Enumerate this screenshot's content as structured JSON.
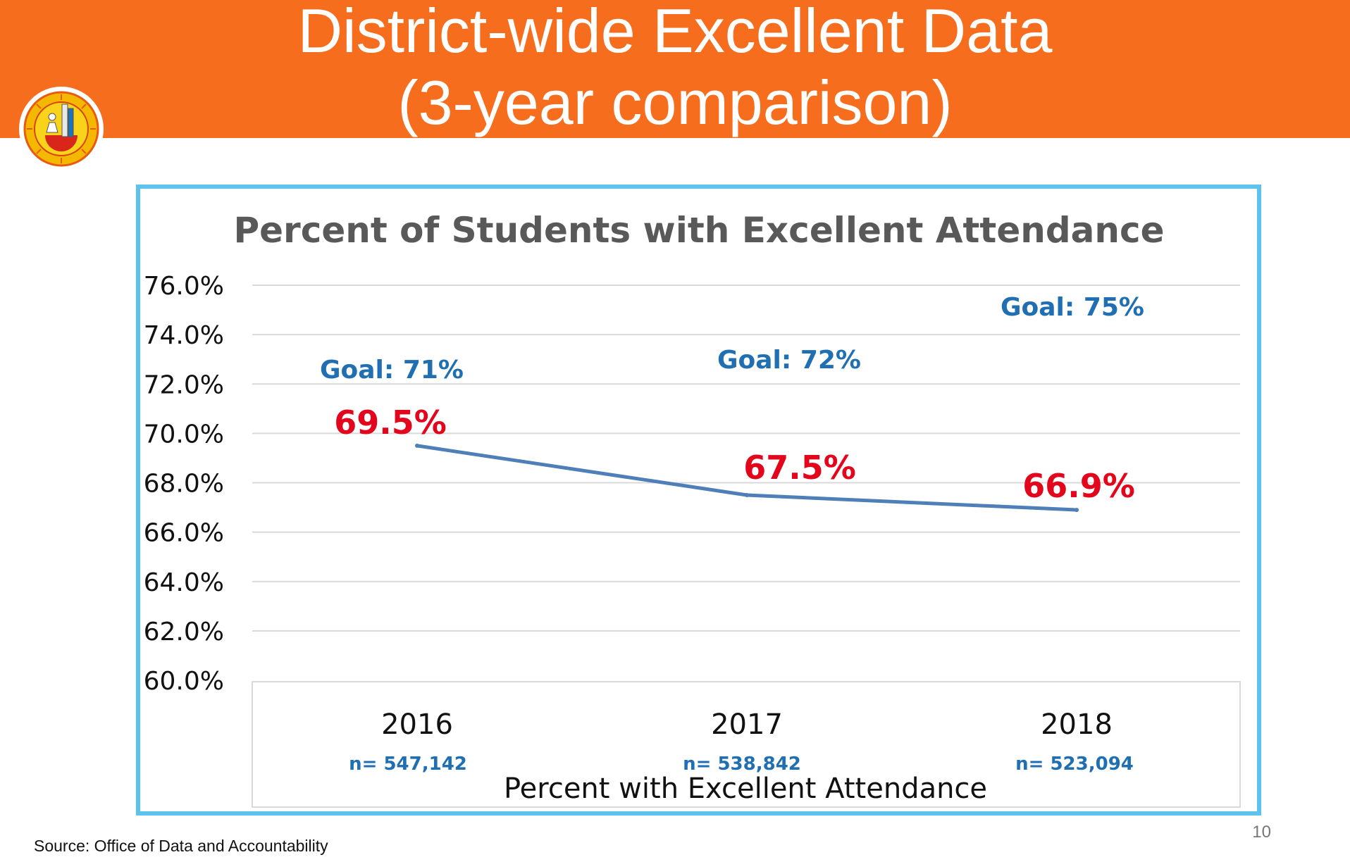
{
  "slide": {
    "title_line1": "District-wide Excellent Data",
    "title_line2": "(3-year comparison)",
    "source": "Source: Office of Data and Accountability",
    "page_number": "10",
    "header_color": "#f76d1e",
    "border_color": "#5cc4ec"
  },
  "chart_data": {
    "type": "line",
    "title": "Percent of Students with Excellent Attendance",
    "xlabel": "Percent with Excellent Attendance",
    "ylabel": "",
    "categories": [
      "2016",
      "2017",
      "2018"
    ],
    "series": [
      {
        "values": [
          69.5,
          67.5,
          66.9
        ],
        "data_labels": [
          "69.5%",
          "67.5%",
          "66.9%"
        ],
        "color": "#4f7fb8"
      }
    ],
    "ylim": [
      60,
      76
    ],
    "y_ticks": [
      {
        "value": 76,
        "label": "76.0%"
      },
      {
        "value": 74,
        "label": "74.0%"
      },
      {
        "value": 72,
        "label": "72.0%"
      },
      {
        "value": 70,
        "label": "70.0%"
      },
      {
        "value": 68,
        "label": "68.0%"
      },
      {
        "value": 66,
        "label": "66.0%"
      },
      {
        "value": 64,
        "label": "64.0%"
      },
      {
        "value": 62,
        "label": "62.0%"
      },
      {
        "value": 60,
        "label": "60.0%"
      }
    ],
    "annotations": [
      "Goal: 71%",
      "Goal: 72%",
      "Goal: 75%"
    ],
    "sample_sizes": [
      "n= 547,142",
      "n= 538,842",
      "n= 523,094"
    ],
    "grid": true,
    "label_color": "#e3051b",
    "annotation_color": "#1f6fb2",
    "grid_color": "#d9d9d9"
  }
}
